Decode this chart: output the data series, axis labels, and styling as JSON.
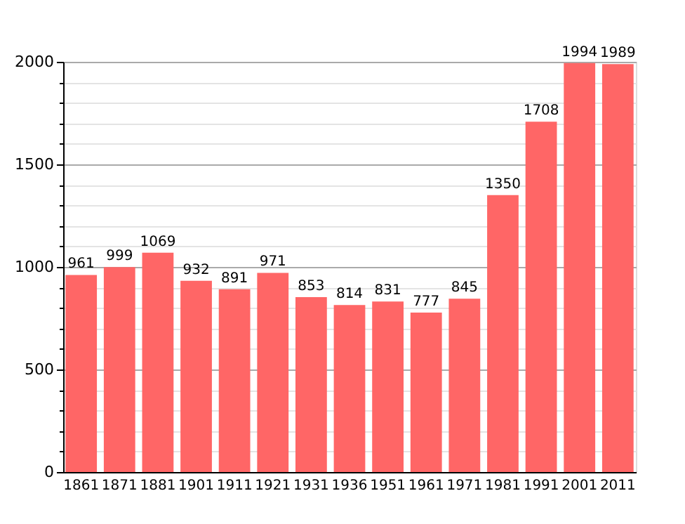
{
  "chart_data": {
    "type": "bar",
    "categories": [
      "1861",
      "1871",
      "1881",
      "1901",
      "1911",
      "1921",
      "1931",
      "1936",
      "1951",
      "1961",
      "1971",
      "1981",
      "1991",
      "2001",
      "2011"
    ],
    "values": [
      961,
      999,
      1069,
      932,
      891,
      971,
      853,
      814,
      831,
      777,
      845,
      1350,
      1708,
      1994,
      1989
    ],
    "color": "#ff6666",
    "ylim": [
      0,
      2000
    ],
    "yticks": [
      0,
      {
        "value": 100,
        "label": null
      },
      {
        "value": 200,
        "label": null
      },
      {
        "value": 300,
        "label": null
      },
      {
        "value": 400,
        "label": null
      },
      500,
      {
        "value": 600,
        "label": null
      },
      {
        "value": 700,
        "label": null
      },
      {
        "value": 800,
        "label": null
      },
      {
        "value": 900,
        "label": null
      },
      1000,
      {
        "value": 1100,
        "label": null
      },
      {
        "value": 1200,
        "label": null
      },
      {
        "value": 1300,
        "label": null
      },
      {
        "value": 1400,
        "label": null
      },
      1500,
      {
        "value": 1600,
        "label": null
      },
      {
        "value": 1700,
        "label": null
      },
      {
        "value": 1800,
        "label": null
      },
      {
        "value": 1900,
        "label": null
      },
      2000
    ],
    "grid": "y",
    "data_labels": true
  }
}
